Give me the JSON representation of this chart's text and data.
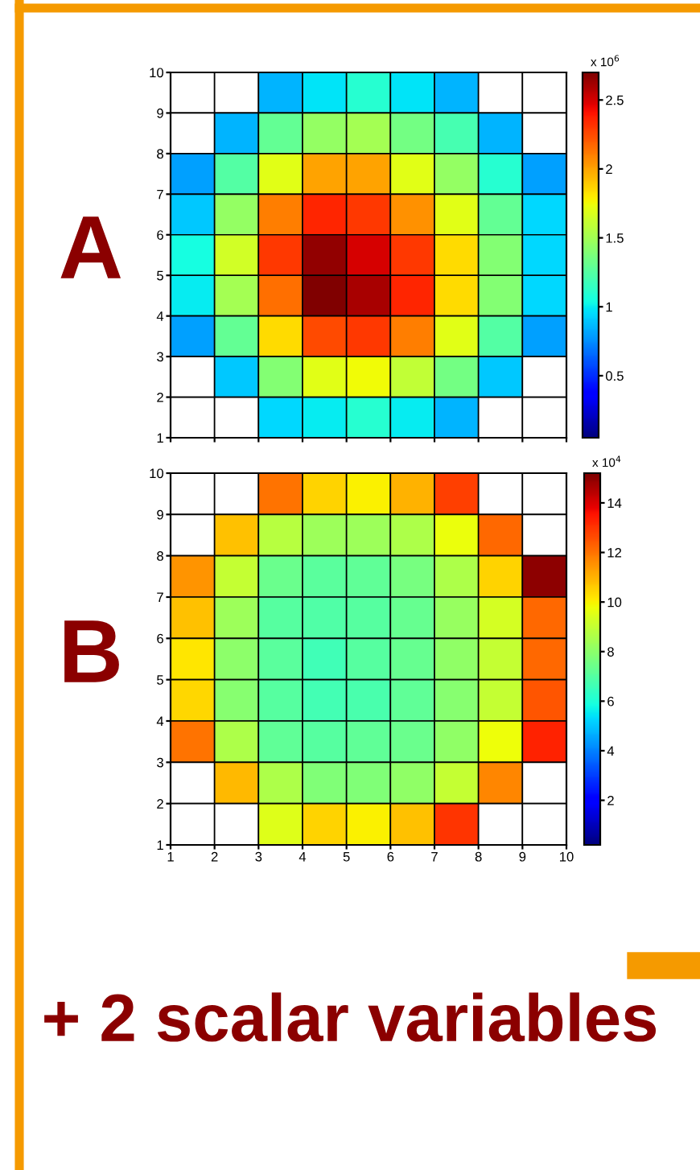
{
  "chart_data": [
    {
      "type": "heatmap",
      "title": "A",
      "xlim": [
        1,
        10
      ],
      "ylim": [
        1,
        10
      ],
      "xticks": [
        1,
        2,
        3,
        4,
        5,
        6,
        7,
        8,
        9,
        10
      ],
      "yticks": [
        1,
        2,
        3,
        4,
        5,
        6,
        7,
        8,
        9,
        10
      ],
      "tick_labels": "y",
      "clim": [
        0.05,
        2.7
      ],
      "cticks": [
        0.5,
        1,
        1.5,
        2,
        2.5
      ],
      "clabel": "x 10$^{6}$",
      "cells": [
        [
          null,
          null,
          0.85,
          0.98,
          1.1,
          0.98,
          0.85,
          null,
          null
        ],
        [
          null,
          0.85,
          1.3,
          1.45,
          1.5,
          1.35,
          1.2,
          0.85,
          null
        ],
        [
          0.8,
          1.25,
          1.7,
          2.0,
          2.0,
          1.7,
          1.45,
          1.1,
          0.8
        ],
        [
          0.9,
          1.45,
          2.1,
          2.35,
          2.3,
          2.05,
          1.7,
          1.3,
          0.95
        ],
        [
          1.05,
          1.65,
          2.3,
          2.65,
          2.5,
          2.3,
          1.85,
          1.4,
          0.95
        ],
        [
          1.0,
          1.5,
          2.15,
          2.7,
          2.6,
          2.35,
          1.85,
          1.4,
          0.95
        ],
        [
          0.8,
          1.3,
          1.85,
          2.25,
          2.3,
          2.1,
          1.7,
          1.25,
          0.8
        ],
        [
          null,
          0.9,
          1.4,
          1.7,
          1.75,
          1.6,
          1.35,
          0.9,
          null
        ],
        [
          null,
          null,
          0.95,
          1.0,
          1.1,
          1.0,
          0.85,
          null,
          null
        ]
      ]
    },
    {
      "type": "heatmap",
      "title": "B",
      "xlim": [
        1,
        10
      ],
      "ylim": [
        1,
        10
      ],
      "xticks": [
        1,
        2,
        3,
        4,
        5,
        6,
        7,
        8,
        9,
        10
      ],
      "yticks": [
        1,
        2,
        3,
        4,
        5,
        6,
        7,
        8,
        9,
        10
      ],
      "clim": [
        0.2,
        15.2
      ],
      "cticks": [
        2,
        4,
        6,
        8,
        10,
        12,
        14
      ],
      "clabel": "x 10$^{4}$",
      "cells": [
        [
          null,
          null,
          12.0,
          10.5,
          10.0,
          11.0,
          12.8,
          null,
          null
        ],
        [
          null,
          10.8,
          8.8,
          8.3,
          8.3,
          8.6,
          9.7,
          12.2,
          null
        ],
        [
          11.5,
          9.0,
          7.4,
          7.1,
          7.2,
          7.6,
          8.6,
          10.5,
          15.0
        ],
        [
          10.8,
          8.3,
          7.0,
          6.9,
          7.0,
          7.3,
          8.2,
          9.3,
          12.2
        ],
        [
          10.2,
          8.0,
          7.1,
          6.6,
          7.0,
          7.3,
          8.1,
          9.0,
          12.2
        ],
        [
          10.4,
          7.9,
          7.0,
          6.7,
          6.8,
          7.2,
          7.9,
          9.0,
          12.5
        ],
        [
          12.0,
          8.6,
          7.2,
          7.0,
          7.2,
          7.4,
          8.1,
          9.8,
          13.3
        ],
        [
          null,
          10.9,
          8.6,
          7.8,
          7.8,
          8.1,
          9.0,
          11.7,
          null
        ],
        [
          null,
          null,
          9.5,
          10.5,
          10.0,
          10.8,
          13.0,
          null,
          null
        ]
      ],
      "annotations": [
        "+ 2 scalar variables"
      ]
    }
  ]
}
